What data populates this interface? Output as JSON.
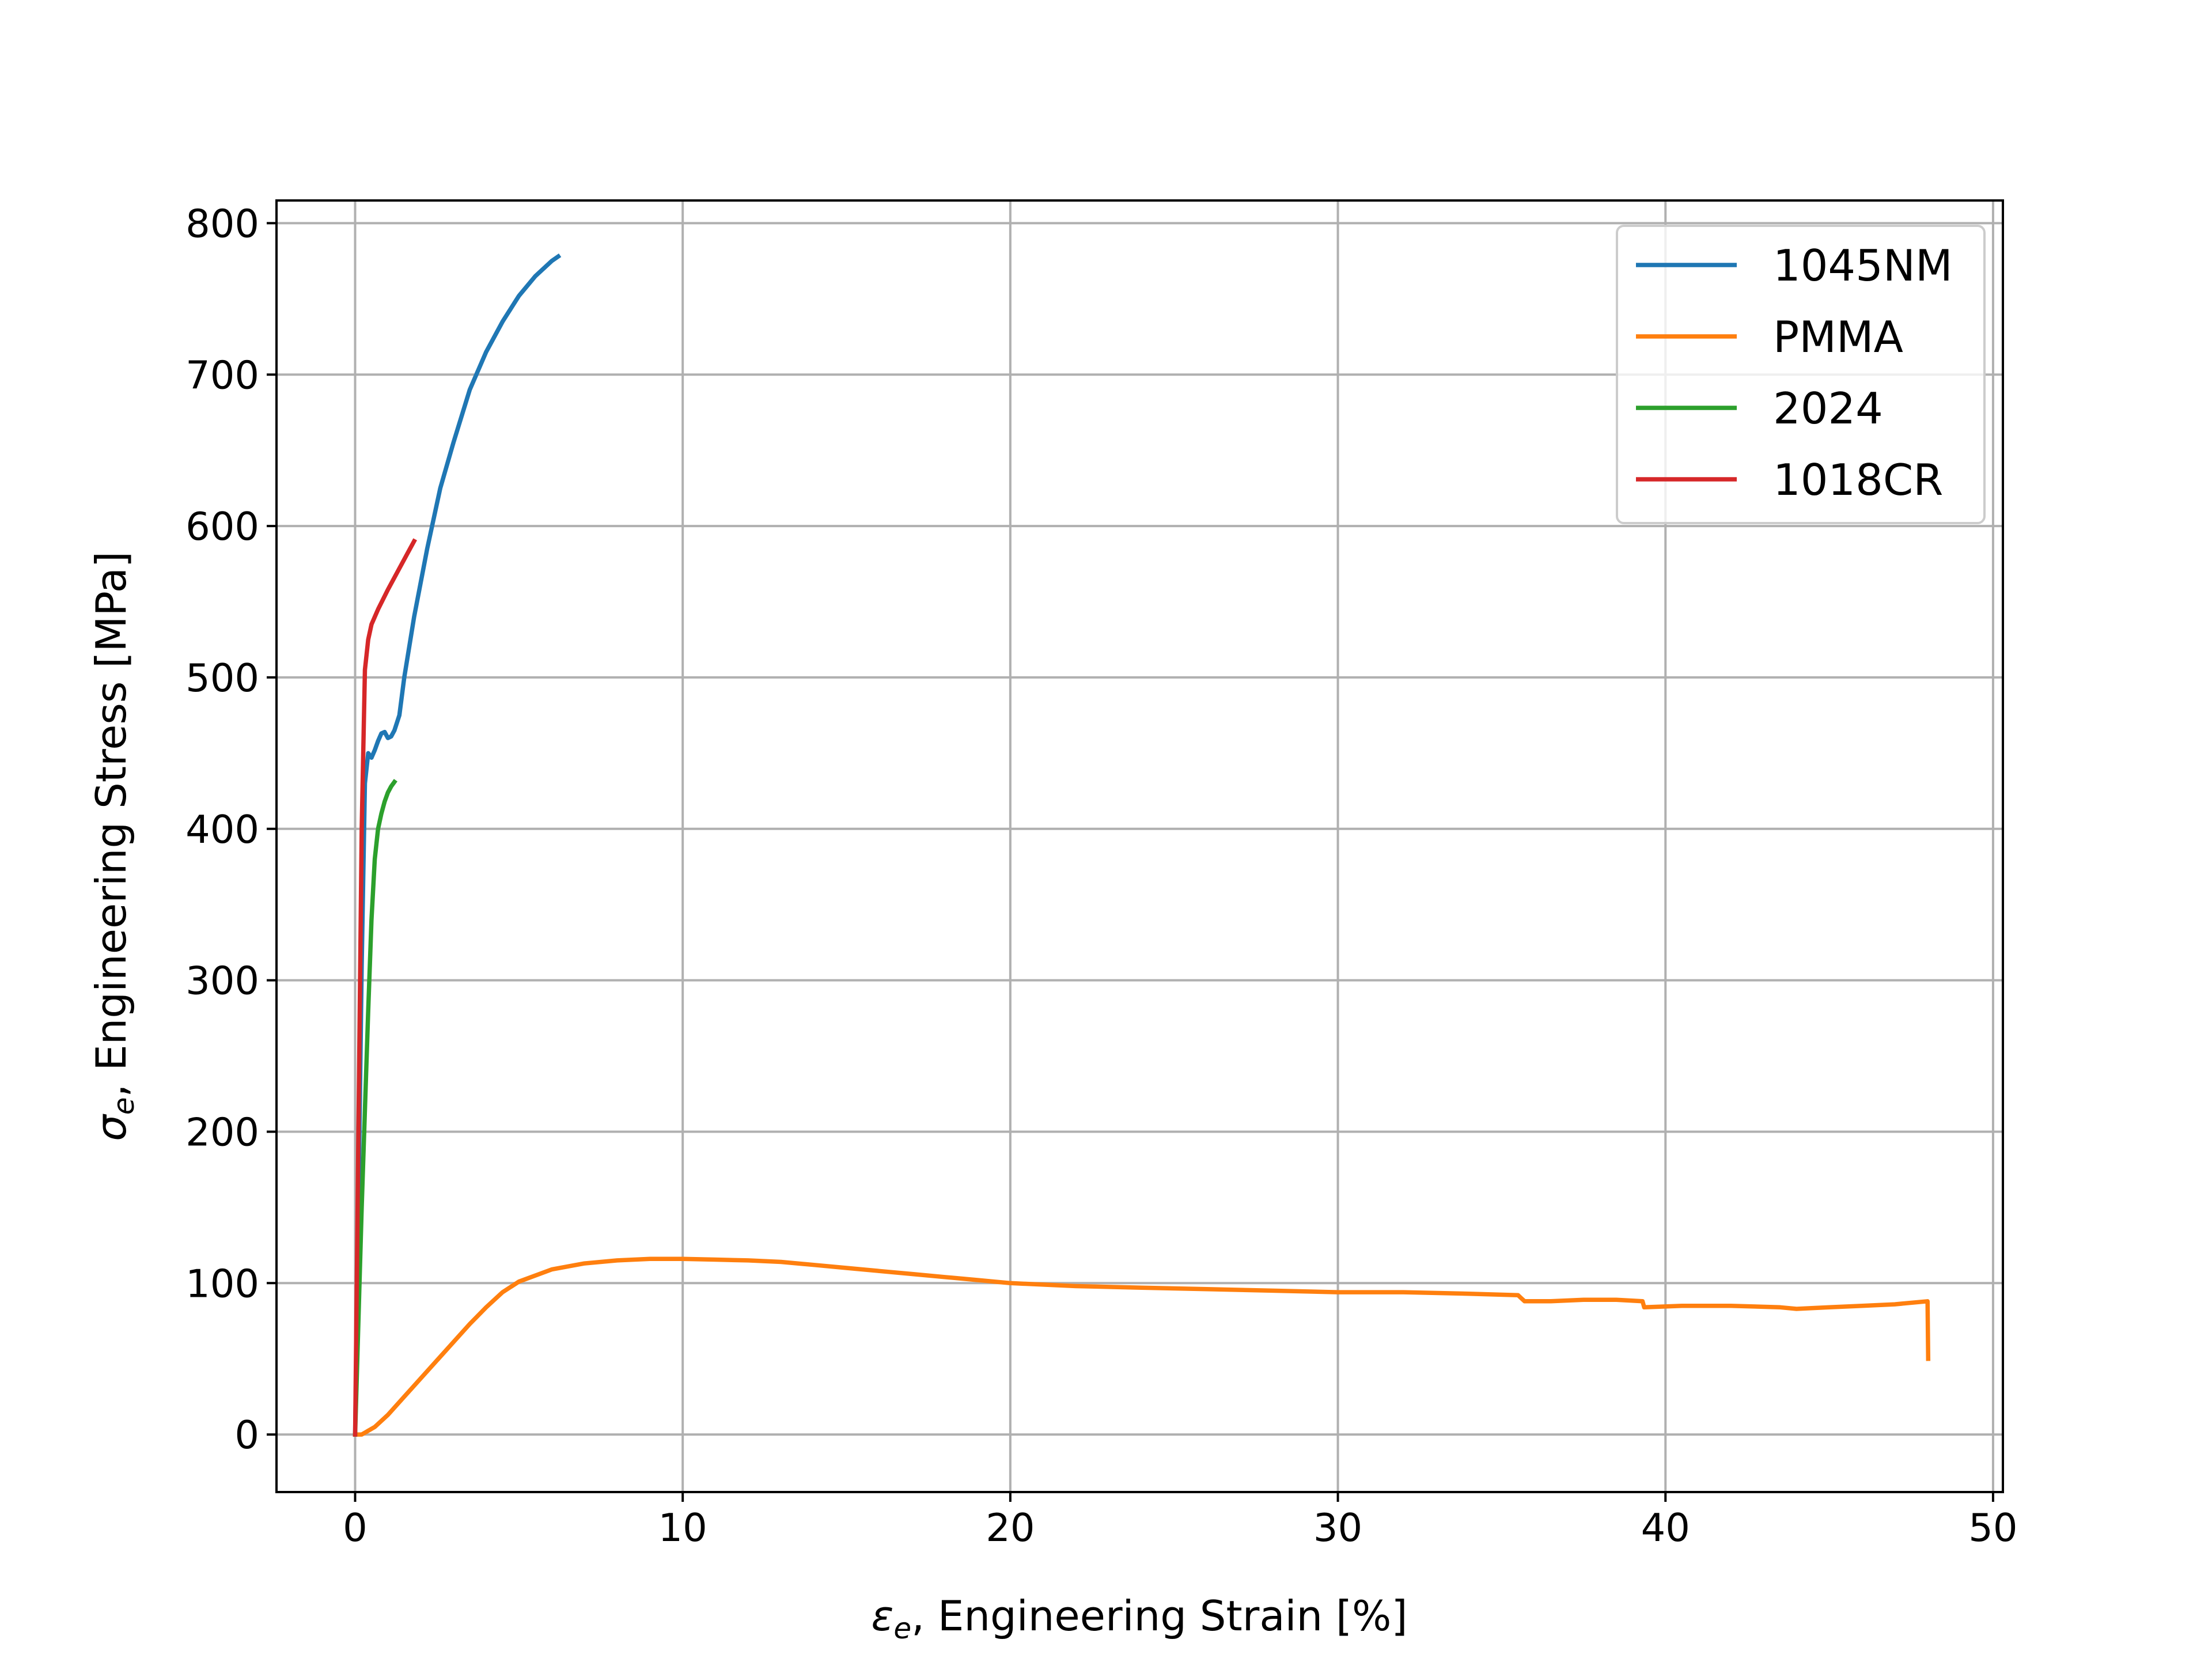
{
  "chart_data": {
    "type": "line",
    "xlabel_symbol": "ε",
    "xlabel_subscript": "e",
    "xlabel_text": ", Engineering Strain  [%]",
    "ylabel_symbol": "σ",
    "ylabel_subscript": "e",
    "ylabel_text": ", Engineering Stress  [MPa]",
    "xlim": [
      -2.4,
      50.3
    ],
    "ylim": [
      -38,
      815
    ],
    "xticks": [
      0,
      10,
      20,
      30,
      40,
      50
    ],
    "xtick_labels": [
      "0",
      "10",
      "20",
      "30",
      "40",
      "50"
    ],
    "yticks": [
      0,
      100,
      200,
      300,
      400,
      500,
      600,
      700,
      800
    ],
    "ytick_labels": [
      "0",
      "100",
      "200",
      "300",
      "400",
      "500",
      "600",
      "700",
      "800"
    ],
    "grid": true,
    "legend_position": "upper right",
    "series": [
      {
        "name": "1045NM",
        "color": "#1f77b4",
        "points": [
          [
            0,
            0
          ],
          [
            0.1,
            150
          ],
          [
            0.2,
            310
          ],
          [
            0.3,
            430
          ],
          [
            0.4,
            450
          ],
          [
            0.5,
            447
          ],
          [
            0.6,
            452
          ],
          [
            0.7,
            458
          ],
          [
            0.8,
            463
          ],
          [
            0.9,
            464
          ],
          [
            1.0,
            460
          ],
          [
            1.1,
            461
          ],
          [
            1.2,
            465
          ],
          [
            1.35,
            475
          ],
          [
            1.5,
            500
          ],
          [
            1.8,
            540
          ],
          [
            2.2,
            585
          ],
          [
            2.6,
            625
          ],
          [
            3.0,
            655
          ],
          [
            3.5,
            690
          ],
          [
            4.0,
            715
          ],
          [
            4.5,
            735
          ],
          [
            5.0,
            752
          ],
          [
            5.5,
            765
          ],
          [
            6.0,
            775
          ],
          [
            6.2,
            778
          ]
        ]
      },
      {
        "name": "PMMA",
        "color": "#ff7f0e",
        "points": [
          [
            0,
            0
          ],
          [
            0.2,
            0
          ],
          [
            0.6,
            5
          ],
          [
            1.0,
            13
          ],
          [
            1.5,
            25
          ],
          [
            2.0,
            37
          ],
          [
            2.5,
            49
          ],
          [
            3.0,
            61
          ],
          [
            3.5,
            73
          ],
          [
            4.0,
            84
          ],
          [
            4.5,
            94
          ],
          [
            5.0,
            101
          ],
          [
            6.0,
            109
          ],
          [
            7.0,
            113
          ],
          [
            8.0,
            115
          ],
          [
            9.0,
            116
          ],
          [
            10.0,
            116
          ],
          [
            11.0,
            115.5
          ],
          [
            12.0,
            115
          ],
          [
            13.0,
            114
          ],
          [
            14.0,
            112
          ],
          [
            15.0,
            110
          ],
          [
            16.0,
            108
          ],
          [
            17.0,
            106
          ],
          [
            18.0,
            104
          ],
          [
            19.0,
            102
          ],
          [
            20.0,
            100
          ],
          [
            21.0,
            99
          ],
          [
            22.0,
            98
          ],
          [
            24.0,
            97
          ],
          [
            26.0,
            96
          ],
          [
            28.0,
            95
          ],
          [
            30.0,
            94
          ],
          [
            32.0,
            94
          ],
          [
            34.0,
            93
          ],
          [
            35.5,
            92
          ],
          [
            35.6,
            90
          ],
          [
            35.7,
            88
          ],
          [
            36.5,
            88
          ],
          [
            37.5,
            89
          ],
          [
            38.5,
            89
          ],
          [
            39.3,
            88
          ],
          [
            39.35,
            84
          ],
          [
            40.5,
            85
          ],
          [
            42.0,
            85
          ],
          [
            43.5,
            84
          ],
          [
            44.0,
            83
          ],
          [
            45.0,
            84
          ],
          [
            46.0,
            85
          ],
          [
            47.0,
            86
          ],
          [
            48.0,
            88
          ],
          [
            48.02,
            50
          ]
        ]
      },
      {
        "name": "2024",
        "color": "#2ca02c",
        "points": [
          [
            0,
            0
          ],
          [
            0.2,
            150
          ],
          [
            0.4,
            280
          ],
          [
            0.5,
            340
          ],
          [
            0.6,
            380
          ],
          [
            0.7,
            400
          ],
          [
            0.8,
            410
          ],
          [
            0.9,
            418
          ],
          [
            1.0,
            424
          ],
          [
            1.1,
            428
          ],
          [
            1.2,
            431
          ]
        ]
      },
      {
        "name": "1018CR",
        "color": "#d62728",
        "points": [
          [
            0,
            0
          ],
          [
            0.1,
            200
          ],
          [
            0.2,
            400
          ],
          [
            0.3,
            505
          ],
          [
            0.4,
            525
          ],
          [
            0.5,
            535
          ],
          [
            0.7,
            545
          ],
          [
            1.0,
            558
          ],
          [
            1.3,
            570
          ],
          [
            1.6,
            582
          ],
          [
            1.8,
            590
          ]
        ]
      }
    ]
  }
}
